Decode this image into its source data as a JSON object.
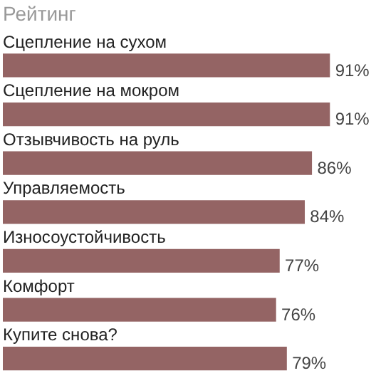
{
  "chart_data": {
    "type": "bar",
    "orientation": "horizontal",
    "title": "Рейтинг",
    "categories": [
      "Сцепление на сухом",
      "Сцепление на мокром",
      "Отзывчивость на руль",
      "Управляемость",
      "Износоустойчивость",
      "Комфорт",
      "Купите снова?"
    ],
    "values": [
      91,
      91,
      86,
      84,
      77,
      76,
      79
    ],
    "value_labels": [
      "91%",
      "91%",
      "86%",
      "84%",
      "77%",
      "76%",
      "79%"
    ],
    "color": "#946464"
  }
}
